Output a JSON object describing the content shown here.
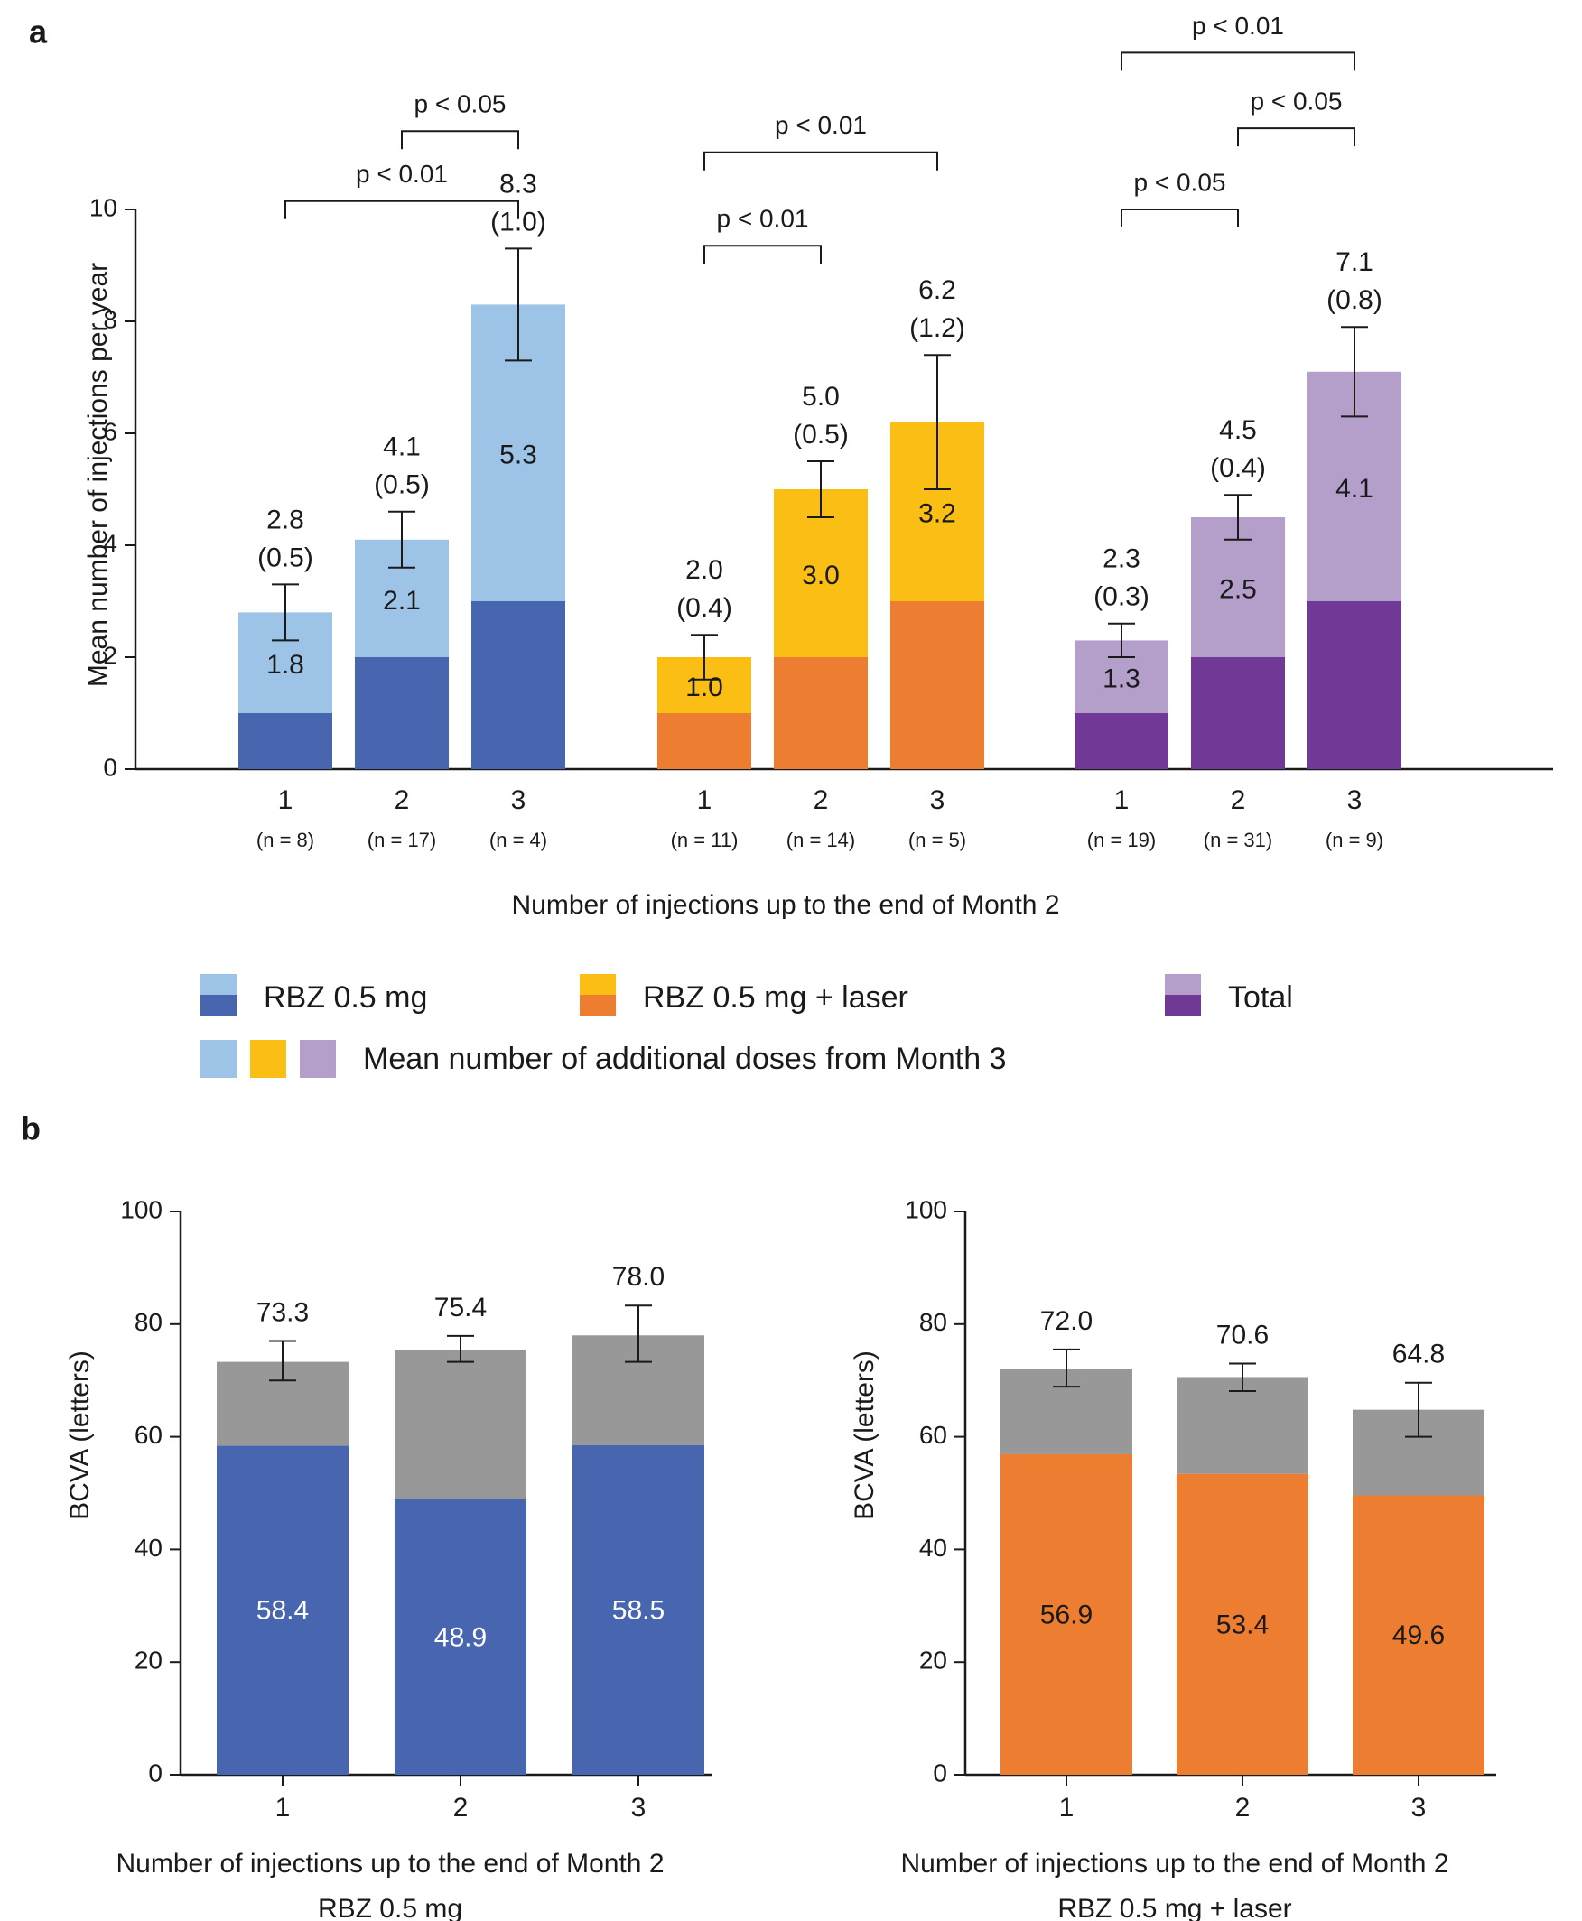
{
  "panel_a_label": "a",
  "panel_b_label": "b",
  "colors": {
    "rbz_light": "#9dc3e6",
    "rbz_dark": "#4866b0",
    "laser_light": "#fbbe14",
    "laser_dark": "#ed7d31",
    "total_light": "#b49fca",
    "total_dark": "#6f3995",
    "gray": "#989898"
  },
  "legend": {
    "rbz": "RBZ 0.5 mg",
    "laser": "RBZ 0.5 mg + laser",
    "total": "Total",
    "additional": "Mean number of additional doses from Month 3"
  },
  "chart_data": [
    {
      "id": "a",
      "type": "bar",
      "stacked": true,
      "ylabel": "Mean number of injections per year",
      "xlabel": "Number of injections up to the end of Month 2",
      "ylim": [
        0,
        10
      ],
      "yticks": [
        0,
        2,
        4,
        6,
        8,
        10
      ],
      "groups": [
        {
          "name": "RBZ 0.5 mg",
          "colors": [
            "rbz_dark",
            "rbz_light"
          ],
          "bars": [
            {
              "category": "1",
              "n": "(n = 8)",
              "base": 1,
              "additional": 1.8,
              "additional_label": "1.8",
              "total": 2.8,
              "total_label": "2.8",
              "se_label": "(0.5)",
              "err_low": 2.3,
              "err_high": 3.3
            },
            {
              "category": "2",
              "n": "(n = 17)",
              "base": 2,
              "additional": 2.1,
              "additional_label": "2.1",
              "total": 4.1,
              "total_label": "4.1",
              "se_label": "(0.5)",
              "err_low": 3.6,
              "err_high": 4.6
            },
            {
              "category": "3",
              "n": "(n = 4)",
              "base": 3,
              "additional": 5.3,
              "additional_label": "5.3",
              "total": 8.3,
              "total_label": "8.3",
              "se_label": "(1.0)",
              "err_low": 7.3,
              "err_high": 9.3
            }
          ],
          "significance": [
            {
              "from": 0,
              "to": 2,
              "label": "p < 0.01",
              "level": 10.15
            },
            {
              "from": 1,
              "to": 2,
              "label": "p < 0.05",
              "level": 11.4
            }
          ]
        },
        {
          "name": "RBZ 0.5 mg + laser",
          "colors": [
            "laser_dark",
            "laser_light"
          ],
          "bars": [
            {
              "category": "1",
              "n": "(n = 11)",
              "base": 1,
              "additional": 1.0,
              "additional_label": "1.0",
              "total": 2.0,
              "total_label": "2.0",
              "se_label": "(0.4)",
              "err_low": 1.6,
              "err_high": 2.4
            },
            {
              "category": "2",
              "n": "(n = 14)",
              "base": 2,
              "additional": 3.0,
              "additional_label": "3.0",
              "total": 5.0,
              "total_label": "5.0",
              "se_label": "(0.5)",
              "err_low": 4.5,
              "err_high": 5.5
            },
            {
              "category": "3",
              "n": "(n = 5)",
              "base": 3,
              "additional": 3.2,
              "additional_label": "3.2",
              "total": 6.2,
              "total_label": "6.2",
              "se_label": "(1.2)",
              "err_low": 5.0,
              "err_high": 7.4
            }
          ],
          "significance": [
            {
              "from": 0,
              "to": 1,
              "label": "p < 0.01",
              "level": 9.35
            },
            {
              "from": 0,
              "to": 2,
              "label": "p < 0.01",
              "level": 11.02
            }
          ]
        },
        {
          "name": "Total",
          "colors": [
            "total_dark",
            "total_light"
          ],
          "bars": [
            {
              "category": "1",
              "n": "(n = 19)",
              "base": 1,
              "additional": 1.3,
              "additional_label": "1.3",
              "total": 2.3,
              "total_label": "2.3",
              "se_label": "(0.3)",
              "err_low": 2.0,
              "err_high": 2.6
            },
            {
              "category": "2",
              "n": "(n = 31)",
              "base": 2,
              "additional": 2.5,
              "additional_label": "2.5",
              "total": 4.5,
              "total_label": "4.5",
              "se_label": "(0.4)",
              "err_low": 4.1,
              "err_high": 4.9
            },
            {
              "category": "3",
              "n": "(n = 9)",
              "base": 3,
              "additional": 4.1,
              "additional_label": "4.1",
              "total": 7.1,
              "total_label": "7.1",
              "se_label": "(0.8)",
              "err_low": 6.3,
              "err_high": 7.9
            }
          ],
          "significance": [
            {
              "from": 0,
              "to": 1,
              "label": "p < 0.05",
              "level": 10.0
            },
            {
              "from": 1,
              "to": 2,
              "label": "p  < 0.05",
              "level": 11.45
            },
            {
              "from": 0,
              "to": 2,
              "label": "p < 0.01",
              "level": 12.8
            }
          ]
        }
      ]
    },
    {
      "id": "b-left",
      "type": "bar",
      "stacked": true,
      "ylabel": "BCVA (letters)",
      "xlabel": "Number of injections up to the end of Month 2",
      "subtitle": "RBZ 0.5 mg",
      "ylim": [
        0,
        100
      ],
      "yticks": [
        0,
        20,
        40,
        60,
        80,
        100
      ],
      "base_color": "rbz_dark",
      "top_color": "gray",
      "inner_label_color": "#ffffff",
      "bars": [
        {
          "category": "1",
          "base": 58.4,
          "base_label": "58.4",
          "total": 73.3,
          "total_label": "73.3",
          "err_low": 70.0,
          "err_high": 77.0
        },
        {
          "category": "2",
          "base": 48.9,
          "base_label": "48.9",
          "total": 75.4,
          "total_label": "75.4",
          "err_low": 73.3,
          "err_high": 77.9
        },
        {
          "category": "3",
          "base": 58.5,
          "base_label": "58.5",
          "total": 78.0,
          "total_label": "78.0",
          "err_low": 73.3,
          "err_high": 83.3
        }
      ]
    },
    {
      "id": "b-right",
      "type": "bar",
      "stacked": true,
      "ylabel": "BCVA (letters)",
      "xlabel": "Number of injections up to the end of Month 2",
      "subtitle": "RBZ 0.5 mg + laser",
      "ylim": [
        0,
        100
      ],
      "yticks": [
        0,
        20,
        40,
        60,
        80,
        100
      ],
      "base_color": "laser_dark",
      "top_color": "gray",
      "inner_label_color": "#1a1a1a",
      "bars": [
        {
          "category": "1",
          "base": 56.9,
          "base_label": "56.9",
          "total": 72.0,
          "total_label": "72.0",
          "err_low": 68.9,
          "err_high": 75.5
        },
        {
          "category": "2",
          "base": 53.4,
          "base_label": "53.4",
          "total": 70.6,
          "total_label": "70.6",
          "err_low": 68.1,
          "err_high": 73.0
        },
        {
          "category": "3",
          "base": 49.6,
          "base_label": "49.6",
          "total": 64.8,
          "total_label": "64.8",
          "err_low": 60.0,
          "err_high": 69.6
        }
      ]
    }
  ]
}
